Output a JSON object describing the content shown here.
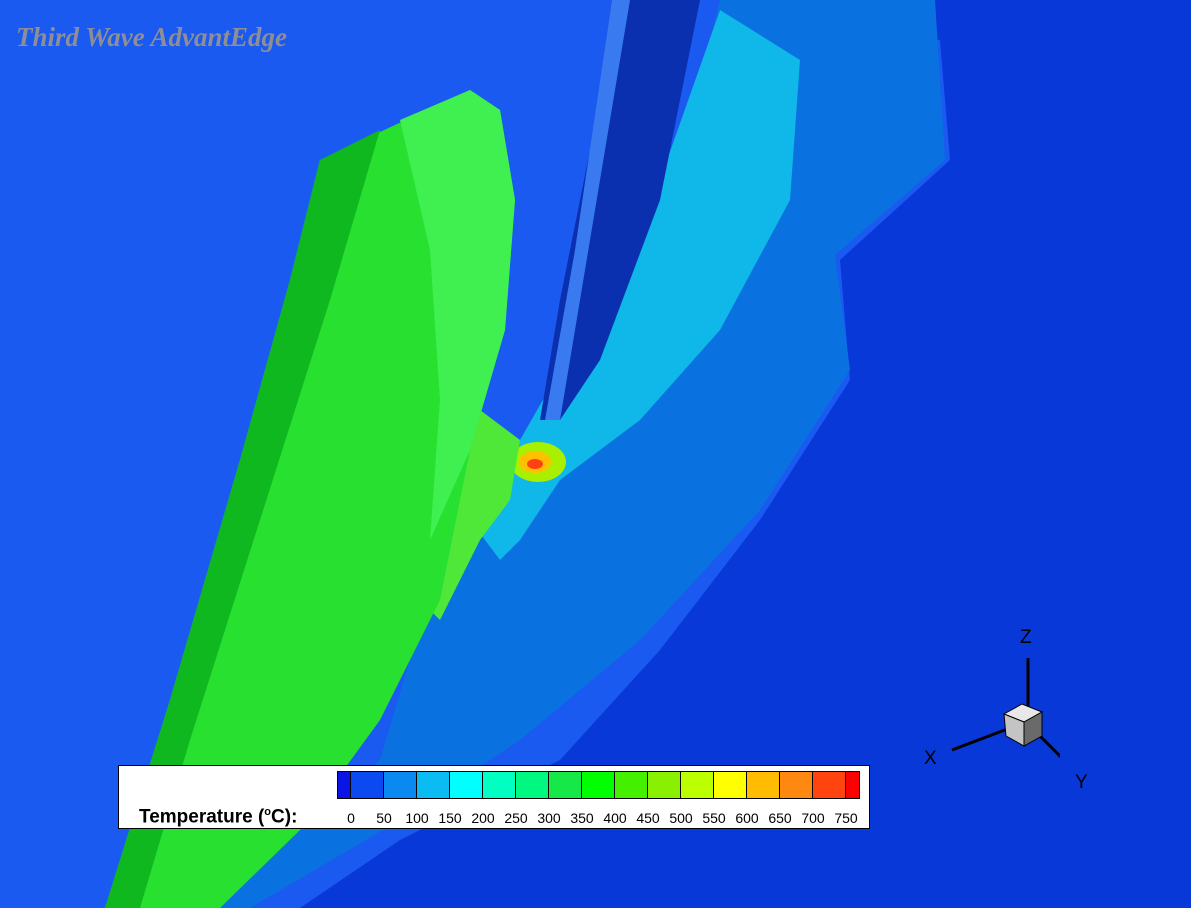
{
  "watermark": "Third Wave AdvantEdge",
  "legend": {
    "title": "Temperature (",
    "unit_sup": "o",
    "unit_rest": "C):",
    "ticks": [
      "0",
      "50",
      "100",
      "150",
      "200",
      "250",
      "300",
      "350",
      "400",
      "450",
      "500",
      "550",
      "600",
      "650",
      "700",
      "750"
    ],
    "colors": [
      "#0a14e6",
      "#0a4af0",
      "#0a8af0",
      "#0abcf2",
      "#00ffff",
      "#00ffc0",
      "#00f880",
      "#16e848",
      "#00ff00",
      "#44f000",
      "#88f000",
      "#bcff00",
      "#ffff00",
      "#ffbc00",
      "#ff8810",
      "#ff4410",
      "#ff0000"
    ]
  },
  "axes": {
    "z": "Z",
    "x": "X",
    "y": "Y"
  }
}
